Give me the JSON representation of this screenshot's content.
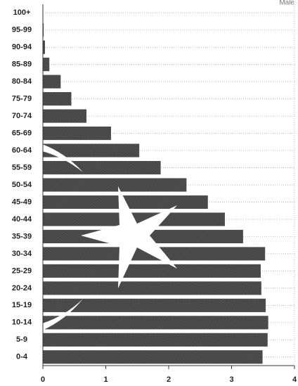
{
  "chart_data": {
    "type": "barh",
    "categories": [
      "100+",
      "95-99",
      "90-94",
      "85-89",
      "80-84",
      "75-79",
      "70-74",
      "65-69",
      "60-64",
      "55-59",
      "50-54",
      "45-49",
      "40-44",
      "35-39",
      "30-34",
      "25-29",
      "20-24",
      "15-19",
      "10-14",
      "5-9",
      "0-4"
    ],
    "series": [
      {
        "name": "Male",
        "color": "#474747",
        "values": [
          0,
          0.01,
          0.03,
          0.1,
          0.28,
          0.45,
          0.69,
          1.08,
          1.53,
          1.87,
          2.28,
          2.62,
          2.89,
          3.18,
          3.53,
          3.46,
          3.47,
          3.54,
          3.58,
          3.57,
          3.49
        ]
      }
    ],
    "xlim": [
      0,
      4
    ],
    "xticks": [
      0,
      1,
      2,
      3,
      4
    ]
  }
}
